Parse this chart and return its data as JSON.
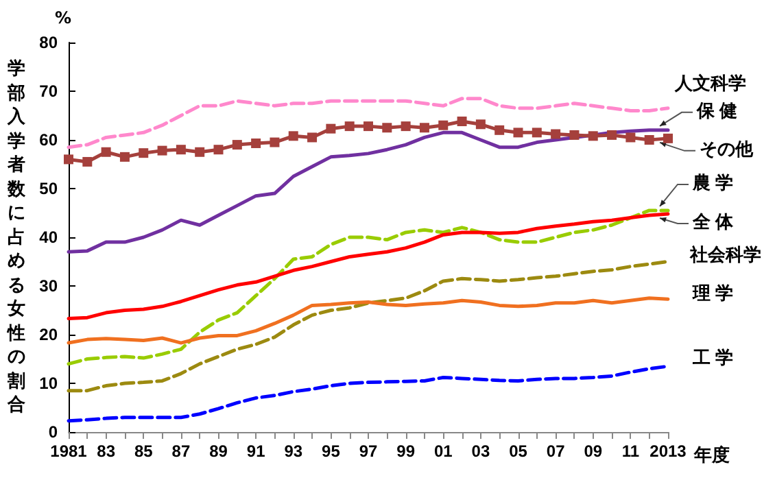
{
  "chart_data": {
    "type": "line",
    "ylabel": "学部入学者数に占める女性の割合",
    "xlabel": "年度",
    "annotations": [
      "%"
    ],
    "categories": [
      "1981",
      null,
      "83",
      null,
      "85",
      null,
      "87",
      null,
      "89",
      null,
      "91",
      null,
      "93",
      null,
      "95",
      null,
      "97",
      null,
      "99",
      null,
      "01",
      null,
      "03",
      null,
      "05",
      null,
      "07",
      null,
      "09",
      null,
      "11",
      null,
      "2013"
    ],
    "ylim": [
      0,
      80
    ],
    "yticks": [
      0,
      10,
      20,
      30,
      40,
      50,
      60,
      70,
      80
    ],
    "grid": false,
    "legend": false,
    "marker": "none",
    "series": [
      {
        "name": "人文科学",
        "color": "#ff88cc",
        "line_style": "dashed",
        "values": [
          58.5,
          59,
          60.5,
          61,
          61.5,
          63,
          65,
          67,
          67,
          68,
          67.5,
          67,
          67.5,
          67.5,
          68,
          68,
          68,
          68,
          68,
          67.5,
          67,
          68.5,
          68.5,
          67,
          66.5,
          66.5,
          67,
          67.5,
          67,
          66.5,
          66,
          66,
          66.5
        ]
      },
      {
        "name": "保 健",
        "color": "#7030a0",
        "line_style": "solid",
        "values": [
          37,
          37.2,
          39,
          39,
          40,
          41.5,
          43.5,
          42.5,
          44.5,
          46.5,
          48.5,
          49,
          52.5,
          54.5,
          56.5,
          56.8,
          57.2,
          58,
          59,
          60.5,
          61.5,
          61.5,
          60,
          58.5,
          58.5,
          59.5,
          60,
          60.5,
          61,
          61.5,
          61.8,
          62,
          62
        ]
      },
      {
        "name": "その他",
        "color": "#a5403c",
        "line_style": "solid",
        "marker": "square",
        "values": [
          56,
          55.5,
          57.5,
          56.5,
          57.3,
          57.8,
          58,
          57.5,
          58,
          59,
          59.3,
          59.5,
          60.8,
          60.5,
          62.3,
          62.8,
          62.8,
          62.5,
          62.8,
          62.5,
          63,
          63.8,
          63.2,
          62,
          61.5,
          61.5,
          61.2,
          61,
          60.8,
          61,
          60.5,
          60,
          60.3
        ]
      },
      {
        "name": "農 学",
        "color": "#99cc00",
        "line_style": "dashed",
        "values": [
          14,
          15,
          15.3,
          15.5,
          15.2,
          16,
          17,
          20.5,
          23,
          24.5,
          28,
          31.5,
          35.5,
          36,
          38.5,
          40,
          40,
          39.5,
          41,
          41.5,
          41,
          42,
          41,
          39.5,
          39,
          39,
          40,
          41,
          41.5,
          42.5,
          44,
          45.5,
          45.5
        ]
      },
      {
        "name": "全 体",
        "color": "#ff0000",
        "line_style": "solid",
        "values": [
          23.3,
          23.5,
          24.5,
          25,
          25.2,
          25.8,
          26.8,
          28,
          29.2,
          30.2,
          30.8,
          32,
          33.2,
          34,
          35,
          36,
          36.5,
          37,
          37.8,
          39,
          40.5,
          41,
          41,
          40.8,
          41,
          41.8,
          42.3,
          42.7,
          43.2,
          43.5,
          44,
          44.5,
          44.8
        ]
      },
      {
        "name": "社会科学",
        "color": "#9c8a10",
        "line_style": "dashed",
        "values": [
          8.5,
          8.5,
          9.5,
          10,
          10.2,
          10.5,
          12,
          14,
          15.5,
          17,
          18,
          19.5,
          22,
          24,
          25,
          25.5,
          26.5,
          27,
          27.5,
          29,
          31,
          31.5,
          31.3,
          31,
          31.3,
          31.7,
          32,
          32.5,
          33,
          33.3,
          34,
          34.5,
          35
        ]
      },
      {
        "name": "理 学",
        "color": "#f07020",
        "line_style": "solid",
        "values": [
          18.3,
          19,
          19.2,
          19,
          18.8,
          19.3,
          18.3,
          19.3,
          19.8,
          19.8,
          20.8,
          22.3,
          24,
          26,
          26.2,
          26.5,
          26.7,
          26.2,
          26,
          26.3,
          26.5,
          27,
          26.7,
          26,
          25.8,
          26,
          26.5,
          26.5,
          27,
          26.5,
          27,
          27.5,
          27.3
        ]
      },
      {
        "name": "工 学",
        "color": "#0000ff",
        "line_style": "dashed",
        "values": [
          2.3,
          2.5,
          2.8,
          3,
          3,
          3,
          3,
          3.7,
          4.8,
          6,
          7,
          7.5,
          8.3,
          8.8,
          9.5,
          10,
          10.2,
          10.3,
          10.4,
          10.5,
          11.2,
          11,
          10.8,
          10.6,
          10.5,
          10.8,
          11,
          11,
          11.2,
          11.5,
          12.3,
          13,
          13.5
        ]
      }
    ]
  }
}
